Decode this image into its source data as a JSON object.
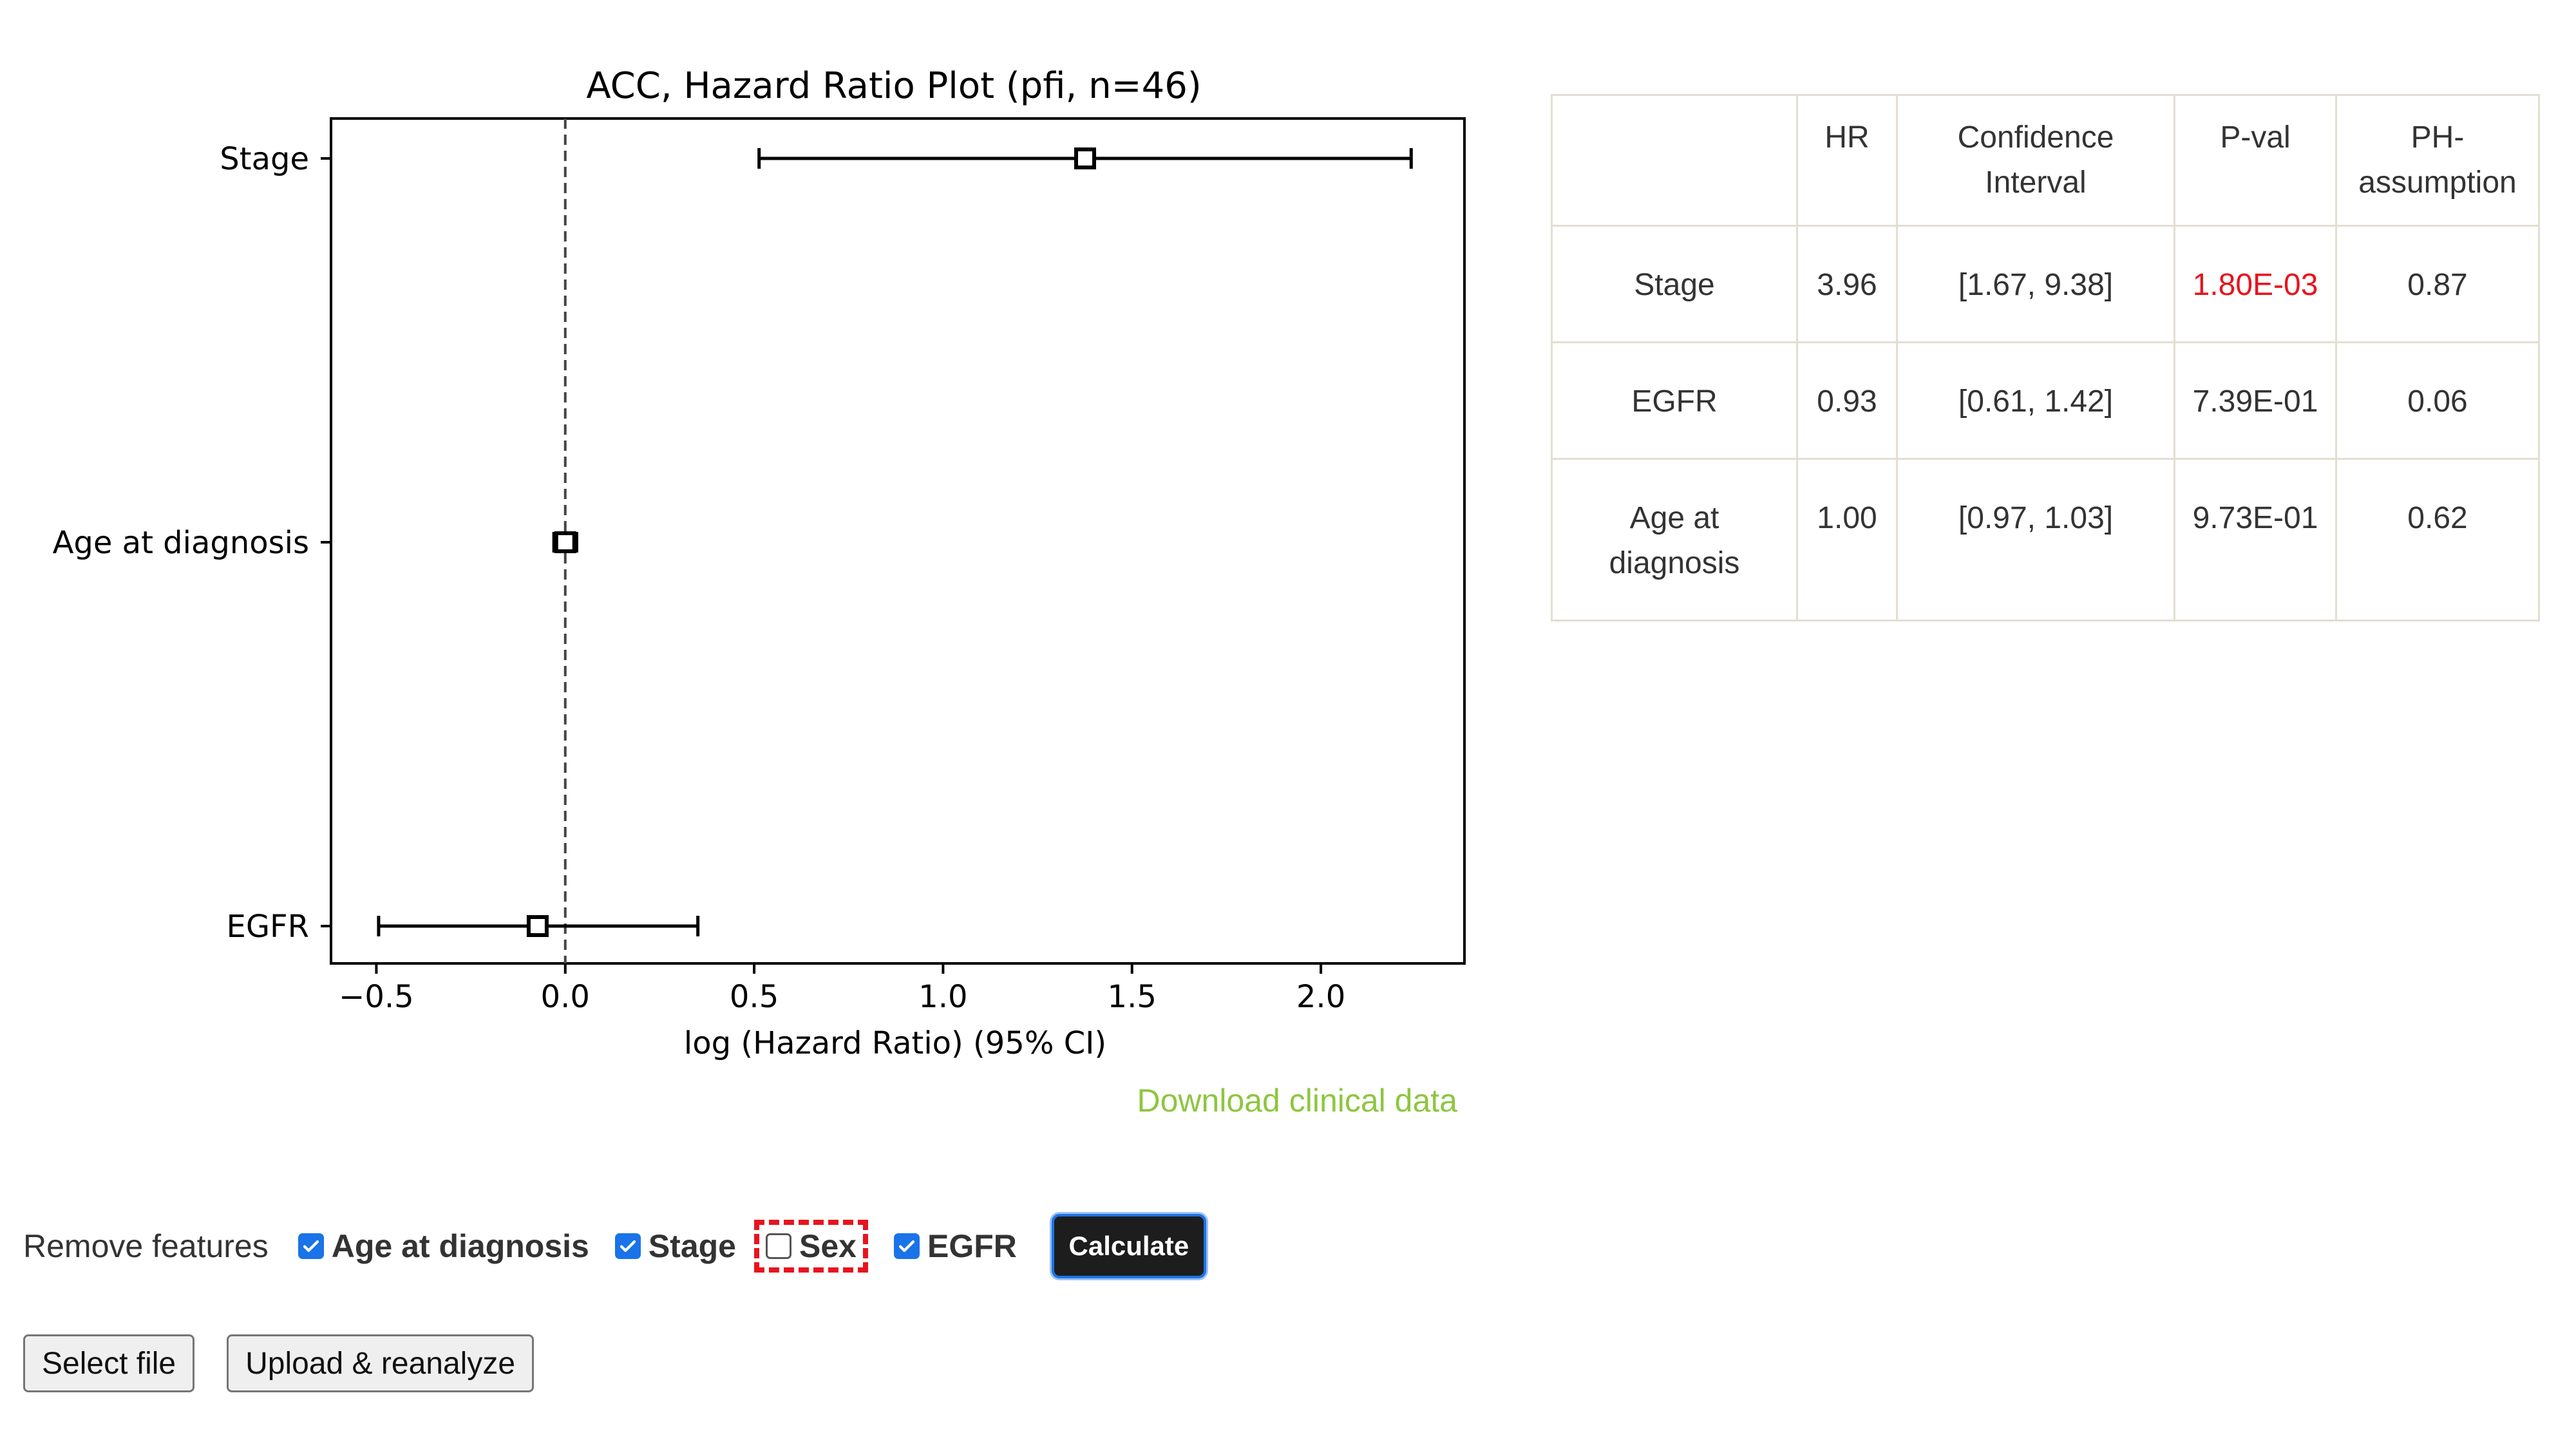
{
  "chart_data": {
    "type": "forest",
    "title": "ACC, Hazard Ratio Plot (pfi, n=46)",
    "xlabel": "log (Hazard Ratio) (95% CI)",
    "xlim": [
      -0.62,
      2.38
    ],
    "xticks": [
      -0.5,
      0.0,
      0.5,
      1.0,
      1.5,
      2.0
    ],
    "xtick_labels": [
      "−0.5",
      "0.0",
      "0.5",
      "1.0",
      "1.5",
      "2.0"
    ],
    "reference_line": 0.0,
    "rows": [
      {
        "label": "Stage",
        "estimate": 1.376,
        "ci_low": 0.513,
        "ci_high": 2.239
      },
      {
        "label": "Age at diagnosis",
        "estimate": 0.0,
        "ci_low": -0.03,
        "ci_high": 0.03
      },
      {
        "label": "EGFR",
        "estimate": -0.073,
        "ci_low": -0.494,
        "ci_high": 0.351
      }
    ]
  },
  "download_link": "Download clinical data",
  "table": {
    "headers": [
      "",
      "HR",
      "Confidence Interval",
      "P-val",
      "PH-assumption"
    ],
    "rows": [
      {
        "feature": "Stage",
        "hr": "3.96",
        "ci": "[1.67, 9.38]",
        "pval": "1.80E-03",
        "ph": "0.87",
        "significant": true
      },
      {
        "feature": "EGFR",
        "hr": "0.93",
        "ci": "[0.61, 1.42]",
        "pval": "7.39E-01",
        "ph": "0.06",
        "significant": false
      },
      {
        "feature": "Age at diagnosis",
        "hr": "1.00",
        "ci": "[0.97, 1.03]",
        "pval": "9.73E-01",
        "ph": "0.62",
        "significant": false
      }
    ]
  },
  "controls": {
    "label": "Remove features",
    "features": [
      {
        "label": "Age at diagnosis",
        "checked": true
      },
      {
        "label": "Stage",
        "checked": true
      },
      {
        "label": "Sex",
        "checked": false
      },
      {
        "label": "EGFR",
        "checked": true
      }
    ],
    "calculate_label": "Calculate"
  },
  "file": {
    "select_label": "Select file",
    "upload_label": "Upload & reanalyze"
  },
  "colors": {
    "link": "#8dc63f",
    "significant": "#e8141e",
    "checkbox": "#1a73e8",
    "highlight": "#e8141e"
  }
}
